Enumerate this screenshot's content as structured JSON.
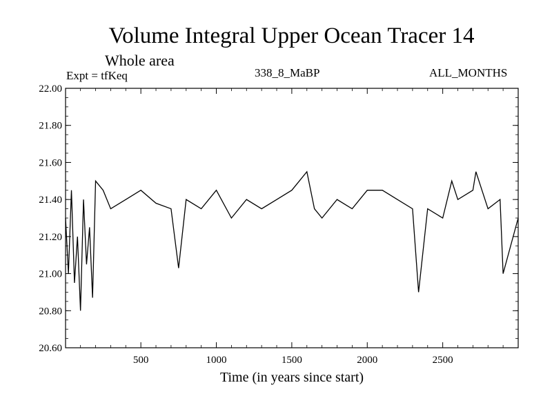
{
  "chart_data": {
    "type": "line",
    "title": "Volume Integral Upper Ocean Tracer 14",
    "subtitle": "Whole area",
    "annotations": {
      "left": "Expt = tfKeq",
      "center": "338_8_MaBP",
      "right": "ALL_MONTHS"
    },
    "xlabel": "Time (in years since start)",
    "ylabel": "",
    "xlim": [
      1,
      3000
    ],
    "ylim": [
      20.6,
      22.0
    ],
    "x_ticks": [
      500,
      1000,
      1500,
      2000,
      2500
    ],
    "x_tick_labels": [
      "500",
      "1000",
      "1500",
      "2000",
      "2500"
    ],
    "y_ticks": [
      20.6,
      20.8,
      21.0,
      21.2,
      21.4,
      21.6,
      21.8,
      22.0
    ],
    "y_tick_labels": [
      "20.60",
      "20.80",
      "21.00",
      "21.20",
      "21.40",
      "21.60",
      "21.80",
      "22.00"
    ],
    "grid": false,
    "series": [
      {
        "color": "#000000",
        "x": [
          1,
          20,
          40,
          60,
          80,
          100,
          120,
          140,
          160,
          180,
          200,
          250,
          300,
          400,
          500,
          600,
          700,
          750,
          800,
          900,
          1000,
          1100,
          1200,
          1300,
          1400,
          1500,
          1550,
          1600,
          1650,
          1700,
          1800,
          1900,
          2000,
          2100,
          2200,
          2300,
          2340,
          2400,
          2500,
          2560,
          2600,
          2700,
          2720,
          2800,
          2880,
          2900,
          3000
        ],
        "y": [
          21.3,
          21.0,
          21.45,
          20.95,
          21.2,
          20.8,
          21.4,
          21.05,
          21.25,
          20.87,
          21.5,
          21.45,
          21.35,
          21.4,
          21.45,
          21.38,
          21.35,
          21.03,
          21.4,
          21.35,
          21.45,
          21.3,
          21.4,
          21.35,
          21.4,
          21.45,
          21.5,
          21.55,
          21.35,
          21.3,
          21.4,
          21.35,
          21.45,
          21.45,
          21.4,
          21.35,
          20.9,
          21.35,
          21.3,
          21.5,
          21.4,
          21.45,
          21.55,
          21.35,
          21.4,
          21.0,
          21.3
        ]
      }
    ]
  }
}
